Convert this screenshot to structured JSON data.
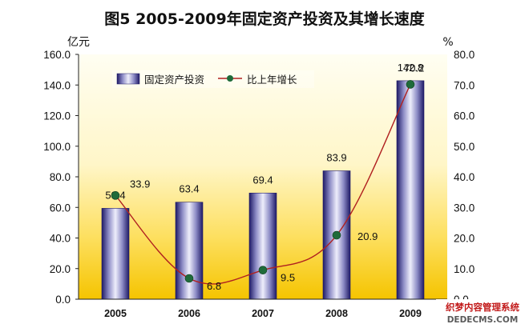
{
  "chart_data": {
    "type": "bar+line",
    "title": "图5  2005-2009年固定资产投资及其增长速度",
    "y_left_unit": "亿元",
    "y_right_unit": "%",
    "categories": [
      "2005",
      "2006",
      "2007",
      "2008",
      "2009"
    ],
    "ylim_left": [
      0,
      160
    ],
    "ylim_right": [
      0,
      80
    ],
    "y_left_ticks": [
      "0.0",
      "20.0",
      "40.0",
      "60.0",
      "80.0",
      "100.0",
      "120.0",
      "140.0",
      "160.0"
    ],
    "y_right_ticks": [
      "0.0",
      "10.0",
      "20.0",
      "30.0",
      "40.0",
      "50.0",
      "60.0",
      "70.0",
      "80.0"
    ],
    "series": [
      {
        "name": "固定资产投资",
        "kind": "bar",
        "axis": "left",
        "values": [
          59.4,
          63.4,
          69.4,
          83.9,
          142.8
        ],
        "labels": [
          "59.4",
          "63.4",
          "69.4",
          "83.9",
          "142.8"
        ]
      },
      {
        "name": "比上年增长",
        "kind": "line",
        "axis": "right",
        "values": [
          33.9,
          6.8,
          9.5,
          20.9,
          70.2
        ],
        "labels": [
          "33.9",
          "6.8",
          "9.5",
          "20.9",
          "70.2"
        ]
      }
    ],
    "legend_position": "top-left",
    "grid": false,
    "colors": {
      "bar_edge": "#1e1a66",
      "bar_mid": "#e8e8f8",
      "line": "#b02020",
      "marker": "#1f6b3a",
      "plot_bg_top": "#fffde8",
      "plot_bg_bottom": "#f6c400"
    }
  },
  "watermark": {
    "line1": "织梦内容管理系统",
    "line2": "DEDECMS.COM"
  }
}
